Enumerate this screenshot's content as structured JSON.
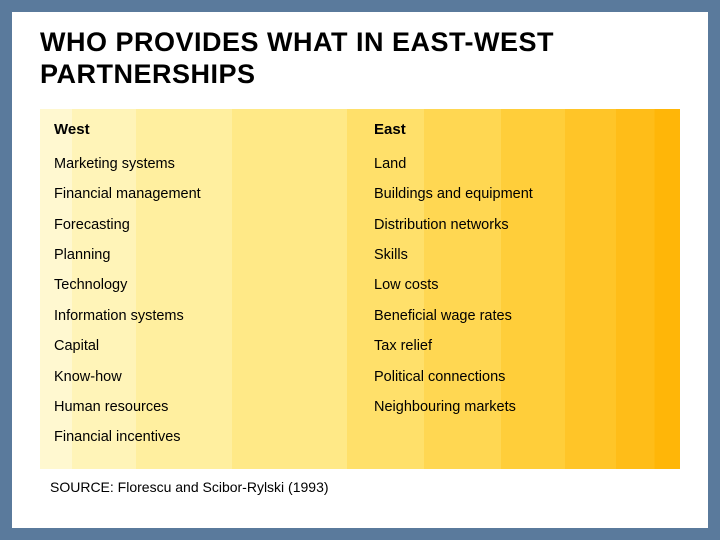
{
  "slide": {
    "title": "WHO PROVIDES WHAT IN EAST-WEST PARTNERSHIPS",
    "source": "SOURCE: Florescu and Scibor-Rylski (1993)",
    "background_color": "#5a7a9c",
    "slide_background": "#ffffff",
    "table": {
      "type": "two-column-list",
      "gradient_colors": [
        "#fff8d0",
        "#fff4b8",
        "#ffef9f",
        "#ffe987",
        "#ffe06a",
        "#ffd752",
        "#ffce3a",
        "#ffc528",
        "#ffbd18",
        "#ffb608"
      ],
      "header_fontsize": 15,
      "header_fontweight": "bold",
      "item_fontsize": 14.5,
      "text_color": "#000000",
      "columns": [
        {
          "header": "West",
          "items": [
            "Marketing systems",
            "Financial management",
            "Forecasting",
            "Planning",
            "Technology",
            "Information systems",
            "Capital",
            "Know-how",
            "Human resources",
            "Financial incentives"
          ]
        },
        {
          "header": "East",
          "items": [
            "Land",
            "Buildings and equipment",
            "Distribution networks",
            "Skills",
            "Low costs",
            "Beneficial wage rates",
            "Tax relief",
            "Political connections",
            "Neighbouring markets"
          ]
        }
      ]
    }
  }
}
